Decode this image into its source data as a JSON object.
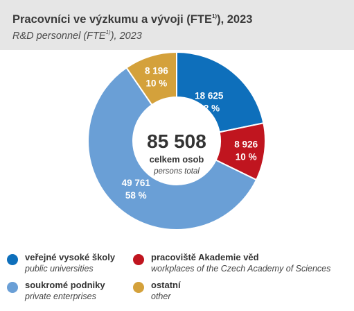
{
  "header": {
    "title": "Pracovníci ve výzkumu a vývoji (FTE",
    "title_sup": "1)",
    "title_end": "), 2023",
    "subtitle": "R&D personnel (FTE",
    "subtitle_sup": "1)",
    "subtitle_end": "), 2023"
  },
  "chart_data": {
    "type": "pie",
    "donut": true,
    "center": {
      "value": "85 508",
      "label_cs": "celkem osob",
      "label_en": "persons total"
    },
    "series": [
      {
        "name": "veřejné vysoké školy",
        "name_en": "public universities",
        "value": 18625,
        "value_label": "18 625",
        "percent_label": "22 %",
        "color": "#0e6fbb"
      },
      {
        "name": "pracoviště Akademie věd",
        "name_en": "workplaces of the Czech Academy of Sciences",
        "value": 8926,
        "value_label": "8 926",
        "percent_label": "10 %",
        "color": "#c0151f"
      },
      {
        "name": "soukromé podniky",
        "name_en": "private enterprises",
        "value": 49761,
        "value_label": "49 761",
        "percent_label": "58 %",
        "color": "#6a9fd6"
      },
      {
        "name": "ostatní",
        "name_en": "other",
        "value": 8196,
        "value_label": "8 196",
        "percent_label": "10 %",
        "color": "#d4a13b"
      }
    ]
  },
  "legend": {
    "items": [
      {
        "cs": "veřejné vysoké školy",
        "en": "public universities",
        "color": "#0e6fbb"
      },
      {
        "cs": "pracoviště Akademie věd",
        "en": "workplaces of the Czech Academy of Sciences",
        "color": "#c0151f"
      },
      {
        "cs": "soukromé podniky",
        "en": "private enterprises",
        "color": "#6a9fd6"
      },
      {
        "cs": "ostatní",
        "en": "other",
        "color": "#d4a13b"
      }
    ]
  }
}
